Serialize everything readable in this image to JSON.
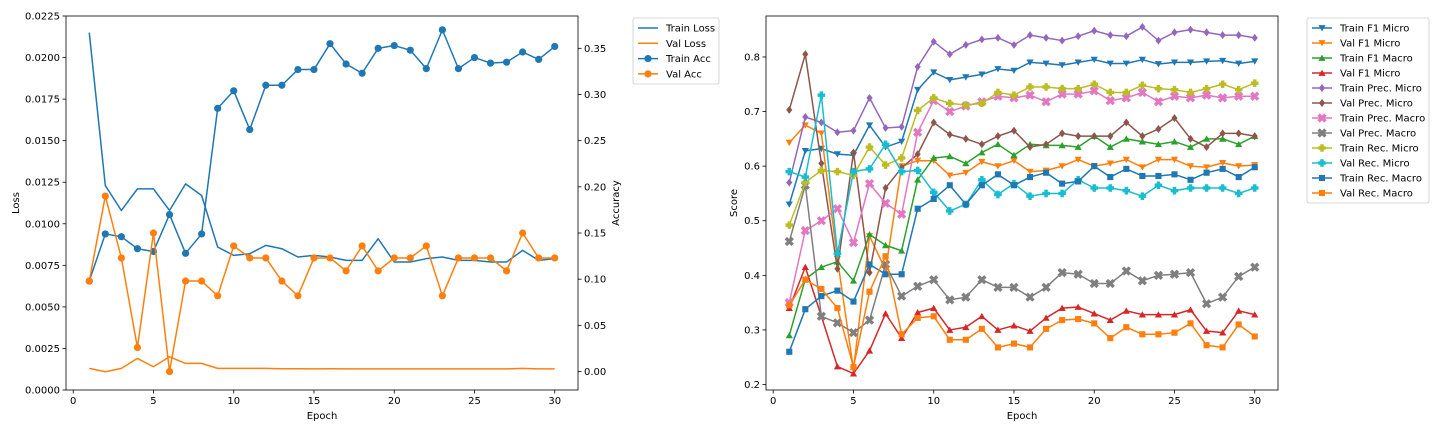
{
  "chart_data": [
    {
      "type": "line",
      "panel": "loss-accuracy",
      "x": [
        1,
        2,
        3,
        4,
        5,
        6,
        7,
        8,
        9,
        10,
        11,
        12,
        13,
        14,
        15,
        16,
        17,
        18,
        19,
        20,
        21,
        22,
        23,
        24,
        25,
        26,
        27,
        28,
        29,
        30
      ],
      "xlabel": "Epoch",
      "xlim": [
        -0.45,
        31.45
      ],
      "xticks": [
        0,
        5,
        10,
        15,
        20,
        25,
        30
      ],
      "ylabel": "Loss",
      "ylim": [
        0.0,
        0.0225
      ],
      "yticks": [
        "0.0000",
        "0.0025",
        "0.0050",
        "0.0075",
        "0.0100",
        "0.0125",
        "0.0150",
        "0.0175",
        "0.0200",
        "0.0225"
      ],
      "y2label": "Accuracy",
      "y2lim": [
        -0.02,
        0.385
      ],
      "y2ticks": [
        "0.00",
        "0.05",
        "0.10",
        "0.15",
        "0.20",
        "0.25",
        "0.30",
        "0.35"
      ],
      "legend_position": "outside top-right",
      "series": [
        {
          "name": "Train Loss",
          "axis": "left",
          "color": "#1f77b4",
          "marker": "none",
          "values": [
            0.0215,
            0.0123,
            0.0108,
            0.0121,
            0.0121,
            0.0108,
            0.0124,
            0.0117,
            0.0086,
            0.0081,
            0.0082,
            0.0087,
            0.0085,
            0.008,
            0.0081,
            0.008,
            0.0078,
            0.0078,
            0.0091,
            0.0077,
            0.0077,
            0.0079,
            0.008,
            0.0078,
            0.0078,
            0.0077,
            0.0077,
            0.0084,
            0.0078,
            0.0079
          ]
        },
        {
          "name": "Val Loss",
          "axis": "left",
          "color": "#ff7f0e",
          "marker": "none",
          "values": [
            0.0013,
            0.0011,
            0.0013,
            0.0019,
            0.0014,
            0.002,
            0.0016,
            0.0016,
            0.0013,
            0.0013,
            0.0013,
            0.0013,
            0.00128,
            0.00128,
            0.00127,
            0.00128,
            0.00127,
            0.00127,
            0.00127,
            0.00127,
            0.00127,
            0.00127,
            0.00127,
            0.00127,
            0.00127,
            0.00127,
            0.00127,
            0.0013,
            0.00127,
            0.00127
          ]
        },
        {
          "name": "Train Acc",
          "axis": "right",
          "color": "#1f77b4",
          "marker": "circle",
          "values": [
            0.098,
            0.149,
            0.146,
            0.133,
            0.13,
            0.17,
            0.128,
            0.149,
            0.285,
            0.304,
            0.262,
            0.31,
            0.31,
            0.327,
            0.327,
            0.355,
            0.333,
            0.323,
            0.35,
            0.353,
            0.348,
            0.328,
            0.37,
            0.328,
            0.34,
            0.334,
            0.335,
            0.346,
            0.338,
            0.352
          ]
        },
        {
          "name": "Val Acc",
          "axis": "right",
          "color": "#ff7f0e",
          "marker": "circle",
          "values": [
            0.098,
            0.19,
            0.123,
            0.026,
            0.15,
            0.0,
            0.098,
            0.098,
            0.082,
            0.136,
            0.123,
            0.123,
            0.098,
            0.082,
            0.123,
            0.123,
            0.109,
            0.136,
            0.109,
            0.123,
            0.123,
            0.136,
            0.082,
            0.123,
            0.123,
            0.123,
            0.109,
            0.15,
            0.123,
            0.123
          ]
        }
      ]
    },
    {
      "type": "line",
      "panel": "scores",
      "x": [
        1,
        2,
        3,
        4,
        5,
        6,
        7,
        8,
        9,
        10,
        11,
        12,
        13,
        14,
        15,
        16,
        17,
        18,
        19,
        20,
        21,
        22,
        23,
        24,
        25,
        26,
        27,
        28,
        29,
        30
      ],
      "xlabel": "Epoch",
      "xlim": [
        -0.45,
        31.45
      ],
      "xticks": [
        0,
        5,
        10,
        15,
        20,
        25,
        30
      ],
      "ylabel": "Score",
      "ylim": [
        0.19,
        0.875
      ],
      "yticks": [
        "0.2",
        "0.3",
        "0.4",
        "0.5",
        "0.6",
        "0.7",
        "0.8"
      ],
      "legend_position": "outside top-right",
      "series": [
        {
          "name": "Train F1 Micro",
          "color": "#1f77b4",
          "marker": "tri-down",
          "values": [
            0.53,
            0.628,
            0.632,
            0.622,
            0.62,
            0.675,
            0.635,
            0.645,
            0.74,
            0.772,
            0.758,
            0.763,
            0.768,
            0.778,
            0.775,
            0.79,
            0.788,
            0.785,
            0.79,
            0.795,
            0.788,
            0.788,
            0.795,
            0.787,
            0.79,
            0.79,
            0.792,
            0.793,
            0.788,
            0.792
          ]
        },
        {
          "name": "Val F1 Micro",
          "color": "#ff7f0e",
          "marker": "tri-down",
          "values": [
            0.643,
            0.675,
            0.66,
            0.43,
            0.228,
            0.472,
            0.41,
            0.6,
            0.61,
            0.61,
            0.583,
            0.588,
            0.608,
            0.6,
            0.61,
            0.59,
            0.592,
            0.6,
            0.612,
            0.6,
            0.605,
            0.612,
            0.598,
            0.612,
            0.612,
            0.6,
            0.598,
            0.606,
            0.6,
            0.602
          ]
        },
        {
          "name": "Train F1 Macro",
          "color": "#2ca02c",
          "marker": "tri-up",
          "values": [
            0.29,
            0.393,
            0.415,
            0.425,
            0.39,
            0.475,
            0.455,
            0.445,
            0.575,
            0.615,
            0.618,
            0.605,
            0.625,
            0.64,
            0.62,
            0.64,
            0.638,
            0.638,
            0.635,
            0.655,
            0.635,
            0.65,
            0.645,
            0.64,
            0.645,
            0.635,
            0.65,
            0.65,
            0.64,
            0.655
          ]
        },
        {
          "name": "Val F1 Micro",
          "color": "#d62728",
          "marker": "tri-up",
          "values": [
            0.34,
            0.415,
            0.325,
            0.233,
            0.22,
            0.262,
            0.33,
            0.285,
            0.332,
            0.34,
            0.3,
            0.305,
            0.325,
            0.3,
            0.308,
            0.298,
            0.322,
            0.34,
            0.342,
            0.33,
            0.318,
            0.335,
            0.328,
            0.328,
            0.328,
            0.337,
            0.298,
            0.295,
            0.335,
            0.328
          ]
        },
        {
          "name": "Train Prec. Micro",
          "color": "#9467bd",
          "marker": "diamond",
          "values": [
            0.57,
            0.69,
            0.68,
            0.662,
            0.665,
            0.725,
            0.67,
            0.672,
            0.782,
            0.828,
            0.805,
            0.822,
            0.832,
            0.835,
            0.822,
            0.84,
            0.835,
            0.83,
            0.838,
            0.848,
            0.84,
            0.838,
            0.855,
            0.83,
            0.845,
            0.85,
            0.845,
            0.84,
            0.84,
            0.835
          ]
        },
        {
          "name": "Val Prec. Micro",
          "color": "#8c564b",
          "marker": "diamond",
          "values": [
            0.703,
            0.805,
            0.605,
            0.412,
            0.625,
            0.405,
            0.56,
            0.597,
            0.622,
            0.68,
            0.658,
            0.65,
            0.64,
            0.655,
            0.665,
            0.635,
            0.64,
            0.66,
            0.655,
            0.655,
            0.655,
            0.68,
            0.655,
            0.668,
            0.688,
            0.65,
            0.635,
            0.66,
            0.66,
            0.655
          ]
        },
        {
          "name": "Train Prec. Macro",
          "color": "#e377c2",
          "marker": "x",
          "values": [
            0.35,
            0.482,
            0.5,
            0.522,
            0.46,
            0.568,
            0.532,
            0.512,
            0.662,
            0.72,
            0.7,
            0.71,
            0.718,
            0.728,
            0.725,
            0.73,
            0.718,
            0.732,
            0.732,
            0.738,
            0.72,
            0.725,
            0.735,
            0.718,
            0.728,
            0.725,
            0.73,
            0.725,
            0.728,
            0.728
          ]
        },
        {
          "name": "Val Prec. Macro",
          "color": "#7f7f7f",
          "marker": "x",
          "values": [
            0.462,
            0.565,
            0.325,
            0.313,
            0.295,
            0.318,
            0.42,
            0.362,
            0.38,
            0.392,
            0.355,
            0.36,
            0.392,
            0.378,
            0.378,
            0.36,
            0.378,
            0.405,
            0.402,
            0.385,
            0.385,
            0.408,
            0.39,
            0.4,
            0.402,
            0.405,
            0.348,
            0.36,
            0.398,
            0.415
          ]
        },
        {
          "name": "Train Rec. Micro",
          "color": "#bcbd22",
          "marker": "plus",
          "values": [
            0.492,
            0.57,
            0.592,
            0.59,
            0.583,
            0.635,
            0.602,
            0.615,
            0.702,
            0.725,
            0.715,
            0.712,
            0.715,
            0.735,
            0.73,
            0.745,
            0.745,
            0.742,
            0.742,
            0.75,
            0.735,
            0.735,
            0.748,
            0.742,
            0.74,
            0.735,
            0.742,
            0.75,
            0.74,
            0.752
          ]
        },
        {
          "name": "Val Rec. Micro",
          "color": "#17becf",
          "marker": "plus",
          "values": [
            0.59,
            0.58,
            0.73,
            0.44,
            0.59,
            0.595,
            0.64,
            0.59,
            0.592,
            0.552,
            0.518,
            0.53,
            0.575,
            0.548,
            0.568,
            0.545,
            0.55,
            0.55,
            0.575,
            0.56,
            0.56,
            0.555,
            0.545,
            0.565,
            0.555,
            0.56,
            0.56,
            0.56,
            0.55,
            0.56
          ]
        },
        {
          "name": "Train Rec. Macro",
          "color": "#1f77b4",
          "marker": "square",
          "values": [
            0.26,
            0.338,
            0.362,
            0.372,
            0.352,
            0.42,
            0.402,
            0.402,
            0.522,
            0.54,
            0.565,
            0.53,
            0.565,
            0.585,
            0.565,
            0.58,
            0.588,
            0.568,
            0.572,
            0.6,
            0.58,
            0.595,
            0.582,
            0.582,
            0.585,
            0.575,
            0.588,
            0.595,
            0.58,
            0.598
          ]
        },
        {
          "name": "Val Rec. Macro",
          "color": "#ff7f0e",
          "marker": "square",
          "values": [
            0.345,
            0.392,
            0.375,
            0.34,
            0.232,
            0.37,
            0.435,
            0.292,
            0.322,
            0.325,
            0.282,
            0.282,
            0.302,
            0.268,
            0.275,
            0.268,
            0.302,
            0.318,
            0.32,
            0.312,
            0.285,
            0.305,
            0.292,
            0.292,
            0.295,
            0.312,
            0.272,
            0.268,
            0.31,
            0.288
          ]
        }
      ]
    }
  ]
}
